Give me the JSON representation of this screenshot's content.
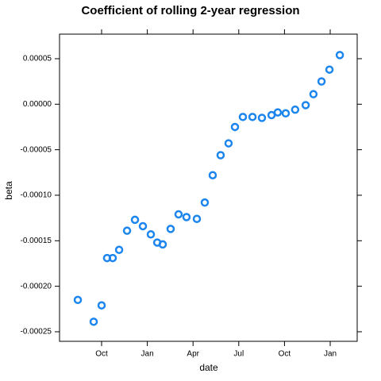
{
  "chart_data": {
    "type": "scatter",
    "title": "Coefficient of rolling 2-year regression",
    "x_label": "date",
    "y_label": "beta",
    "x": [
      -1.56,
      -0.52,
      0,
      0.36,
      0.73,
      1.15,
      1.67,
      2.19,
      2.71,
      3.23,
      3.65,
      4.01,
      4.53,
      5.05,
      5.57,
      6.25,
      6.77,
      7.29,
      7.81,
      8.33,
      8.75,
      9.27,
      9.9,
      10.52,
      11.15,
      11.56,
      12.08,
      12.7,
      13.39,
      13.9,
      14.43,
      14.95,
      15.63
    ],
    "values": [
      -0.000215,
      -0.000239,
      -0.000221,
      -0.000169,
      -0.000169,
      -0.00016,
      -0.000139,
      -0.000127,
      -0.000134,
      -0.000143,
      -0.000152,
      -0.000154,
      -0.000137,
      -0.000121,
      -0.000124,
      -0.000126,
      -0.000108,
      -7.8e-05,
      -5.6e-05,
      -4.3e-05,
      -2.5e-05,
      -1.4e-05,
      -1.4e-05,
      -1.5e-05,
      -1.2e-05,
      -9e-06,
      -1e-05,
      -6e-06,
      -1e-06,
      1.1e-05,
      2.5e-05,
      3.8e-05,
      5.4e-05
    ],
    "color": "#1c86ee",
    "xlim": [
      -2.76,
      16.77
    ],
    "xticks": [
      {
        "value": 0,
        "label": "Oct"
      },
      {
        "value": 3,
        "label": "Jan"
      },
      {
        "value": 6,
        "label": "Apr"
      },
      {
        "value": 9,
        "label": "Jul"
      },
      {
        "value": 12,
        "label": "Oct"
      },
      {
        "value": 15,
        "label": "Jan"
      }
    ],
    "ylim": [
      -0.0002605,
      7.7e-05
    ],
    "yticks": [
      {
        "value": -0.00025,
        "label": "-0.00025"
      },
      {
        "value": -0.0002,
        "label": "-0.00020"
      },
      {
        "value": -0.00015,
        "label": "-0.00015"
      },
      {
        "value": -0.0001,
        "label": "-0.00010"
      },
      {
        "value": -5e-05,
        "label": "-0.00005"
      },
      {
        "value": 0,
        "label": "0.00000"
      },
      {
        "value": 5e-05,
        "label": "0.00005"
      }
    ]
  }
}
